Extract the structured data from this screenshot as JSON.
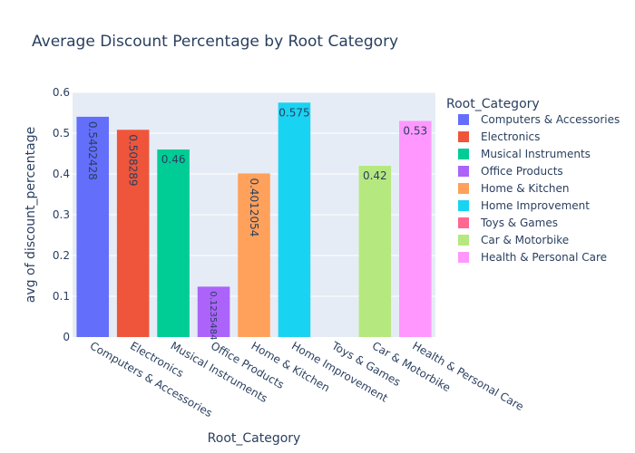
{
  "chart_data": {
    "type": "bar",
    "title": "Average Discount Percentage by Root Category",
    "xlabel": "Root_Category",
    "ylabel": "avg of discount_percentage",
    "ylim": [
      0,
      0.6
    ],
    "yticks": [
      "0",
      "0.1",
      "0.2",
      "0.3",
      "0.4",
      "0.5",
      "0.6"
    ],
    "grid": true,
    "legend_title": "Root_Category",
    "legend_position": "right",
    "categories": [
      "Computers & Accessories",
      "Electronics",
      "Musical Instruments",
      "Office Products",
      "Home & Kitchen",
      "Home Improvement",
      "Toys & Games",
      "Car & Motorbike",
      "Health & Personal Care"
    ],
    "values": [
      0.5402428,
      0.508289,
      0.46,
      0.1235484,
      0.4012054,
      0.575,
      0,
      0.42,
      0.53
    ],
    "data_labels": [
      "0.5402428",
      "0.508289",
      "0.46",
      "0.1235484",
      "0.4012054",
      "0.575",
      "",
      "0.42",
      "0.53"
    ],
    "colors": [
      "#636efa",
      "#EF553B",
      "#00cc96",
      "#ab63fa",
      "#FFA15A",
      "#19d3f3",
      "#FF6692",
      "#B6E880",
      "#FF97FF"
    ]
  }
}
